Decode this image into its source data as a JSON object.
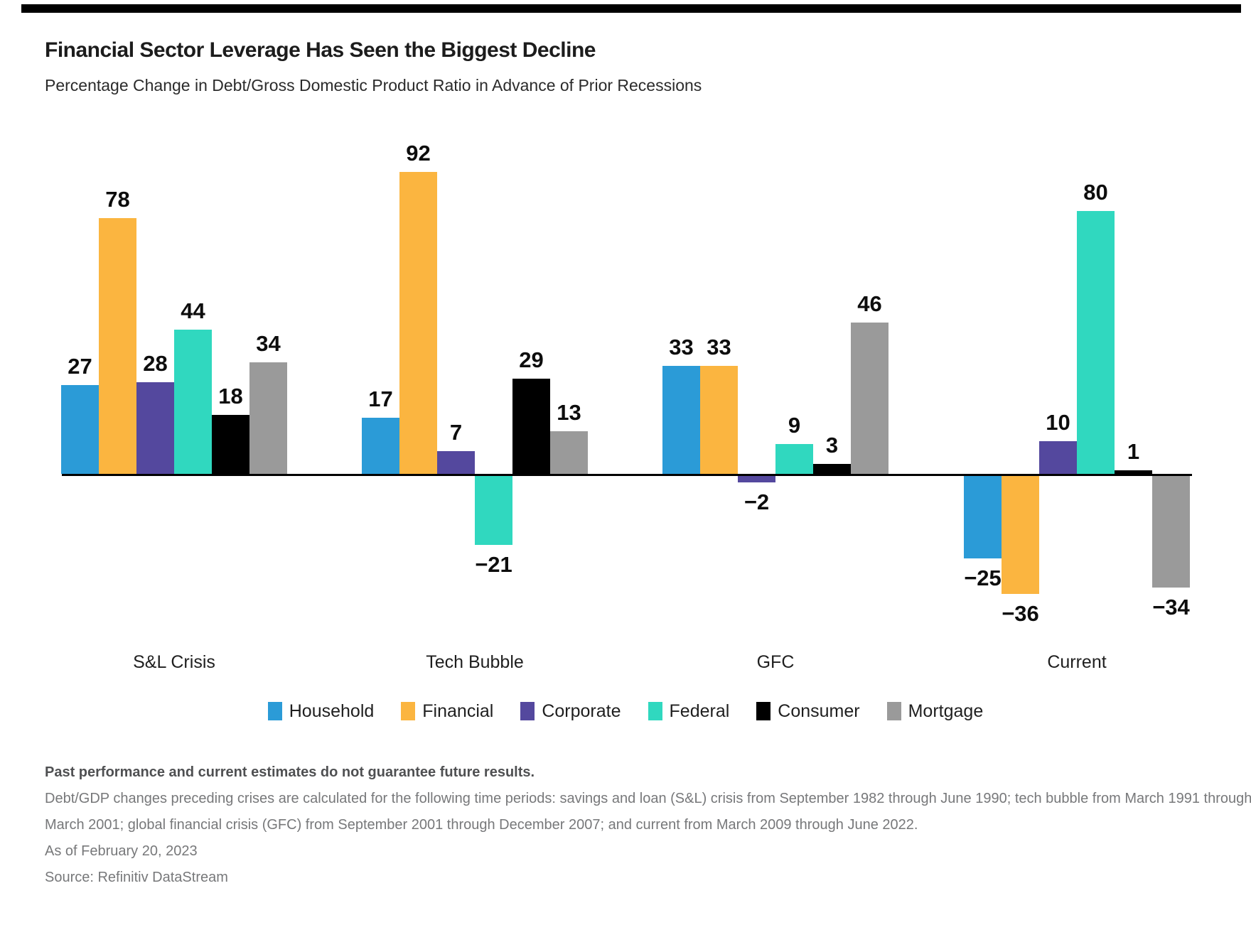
{
  "page": {
    "title": "Financial Sector Leverage Has Seen the Biggest Decline",
    "subtitle": "Percentage Change in Debt/Gross Domestic Product Ratio in Advance of Prior Recessions"
  },
  "chart_data": {
    "type": "bar",
    "title": "Financial Sector Leverage Has Seen the Biggest Decline",
    "subtitle": "Percentage Change in Debt/Gross Domestic Product Ratio in Advance of Prior Recessions",
    "categories": [
      "S&L Crisis",
      "Tech Bubble",
      "GFC",
      "Current"
    ],
    "series": [
      {
        "name": "Household",
        "color": "#2B9BD7",
        "values": [
          27,
          17,
          33,
          -25
        ]
      },
      {
        "name": "Financial",
        "color": "#FBB540",
        "values": [
          78,
          92,
          33,
          -36
        ]
      },
      {
        "name": "Corporate",
        "color": "#54489E",
        "values": [
          28,
          7,
          -2,
          10
        ]
      },
      {
        "name": "Federal",
        "color": "#30D8BF",
        "values": [
          44,
          -21,
          9,
          80
        ]
      },
      {
        "name": "Consumer",
        "color": "#000000",
        "values": [
          18,
          29,
          3,
          1
        ]
      },
      {
        "name": "Mortgage",
        "color": "#9A9A9A",
        "values": [
          34,
          13,
          46,
          -34
        ]
      }
    ],
    "xlabel": "",
    "ylabel": "",
    "ylim": [
      -40,
      95
    ],
    "grid": false,
    "value_labels": true,
    "legend_position": "bottom",
    "axis_color": "#000000"
  },
  "footer": {
    "disclaimer": "Past performance and current estimates do not guarantee future results.",
    "footnote_lines": [
      "Debt/GDP changes preceding crises are calculated for the following time periods: savings and loan (S&L) crisis from September 1982 through June 1990; tech bubble from March 1991 through",
      "March 2001; global financial crisis (GFC) from September 2001 through December 2007; and current from March 2009 through June 2022."
    ],
    "as_of": "As of February 20, 2023",
    "source": "Source: Refinitiv DataStream"
  }
}
